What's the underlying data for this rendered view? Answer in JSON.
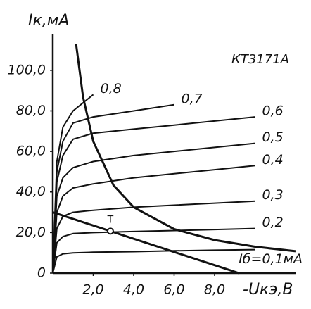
{
  "chart_data": {
    "type": "line",
    "title": "КТ3171А",
    "xlabel": "-Uкэ,В",
    "ylabel": "Iк,мА",
    "x": [
      0,
      0.2,
      0.5,
      1,
      2,
      4,
      6,
      8,
      10
    ],
    "xlim": [
      0,
      12
    ],
    "ylim": [
      0,
      118
    ],
    "xticks": [
      {
        "value": 2,
        "label": "2,0"
      },
      {
        "value": 4,
        "label": "4,0"
      },
      {
        "value": 6,
        "label": "6,0"
      },
      {
        "value": 8,
        "label": "8,0"
      }
    ],
    "yticks": [
      0,
      {
        "value": 20,
        "label": "20,0"
      },
      {
        "value": 40,
        "label": "40,0"
      },
      {
        "value": 60,
        "label": "60,0"
      },
      {
        "value": 80,
        "label": "80,0"
      },
      {
        "value": 100,
        "label": "100,0"
      }
    ],
    "color": "#111111",
    "series": [
      {
        "name": "Iб=0,1мА",
        "values": [
          0,
          8,
          9.5,
          10,
          10.3,
          10.6,
          11,
          11.3,
          11.6
        ]
      },
      {
        "name": "0,2",
        "values": [
          0,
          15,
          18,
          19.5,
          20,
          20.5,
          21,
          21.5,
          22
        ]
      },
      {
        "name": "0,3",
        "values": [
          0,
          22,
          28,
          30,
          31,
          32.5,
          33.5,
          34.5,
          35.5
        ]
      },
      {
        "name": "0,4",
        "values": [
          0,
          30,
          38,
          42,
          44,
          47,
          49,
          51,
          53
        ]
      },
      {
        "name": "0,5",
        "values": [
          0,
          38,
          47,
          52,
          55,
          58,
          60,
          62,
          64
        ]
      },
      {
        "name": "0,6",
        "values": [
          0,
          45,
          58,
          66,
          69,
          71,
          73,
          75,
          77
        ]
      },
      {
        "name": "0,7",
        "values": [
          0,
          50,
          65,
          74,
          77,
          80,
          83,
          null,
          null
        ]
      },
      {
        "name": "0,8",
        "values": [
          0,
          55,
          72,
          80,
          88,
          null,
          null,
          null,
          null
        ]
      }
    ],
    "power_curve": {
      "x": [
        1.15,
        1.5,
        2,
        3,
        4,
        6,
        8,
        10,
        12
      ],
      "values": [
        113,
        86.7,
        65,
        43.3,
        32.5,
        21.7,
        16.3,
        13,
        10.8
      ]
    },
    "load_line": {
      "x": [
        0,
        9.2
      ],
      "values": [
        30,
        0
      ]
    },
    "operating_point": {
      "label": "T",
      "x": 2.85,
      "value": 20.7
    }
  }
}
